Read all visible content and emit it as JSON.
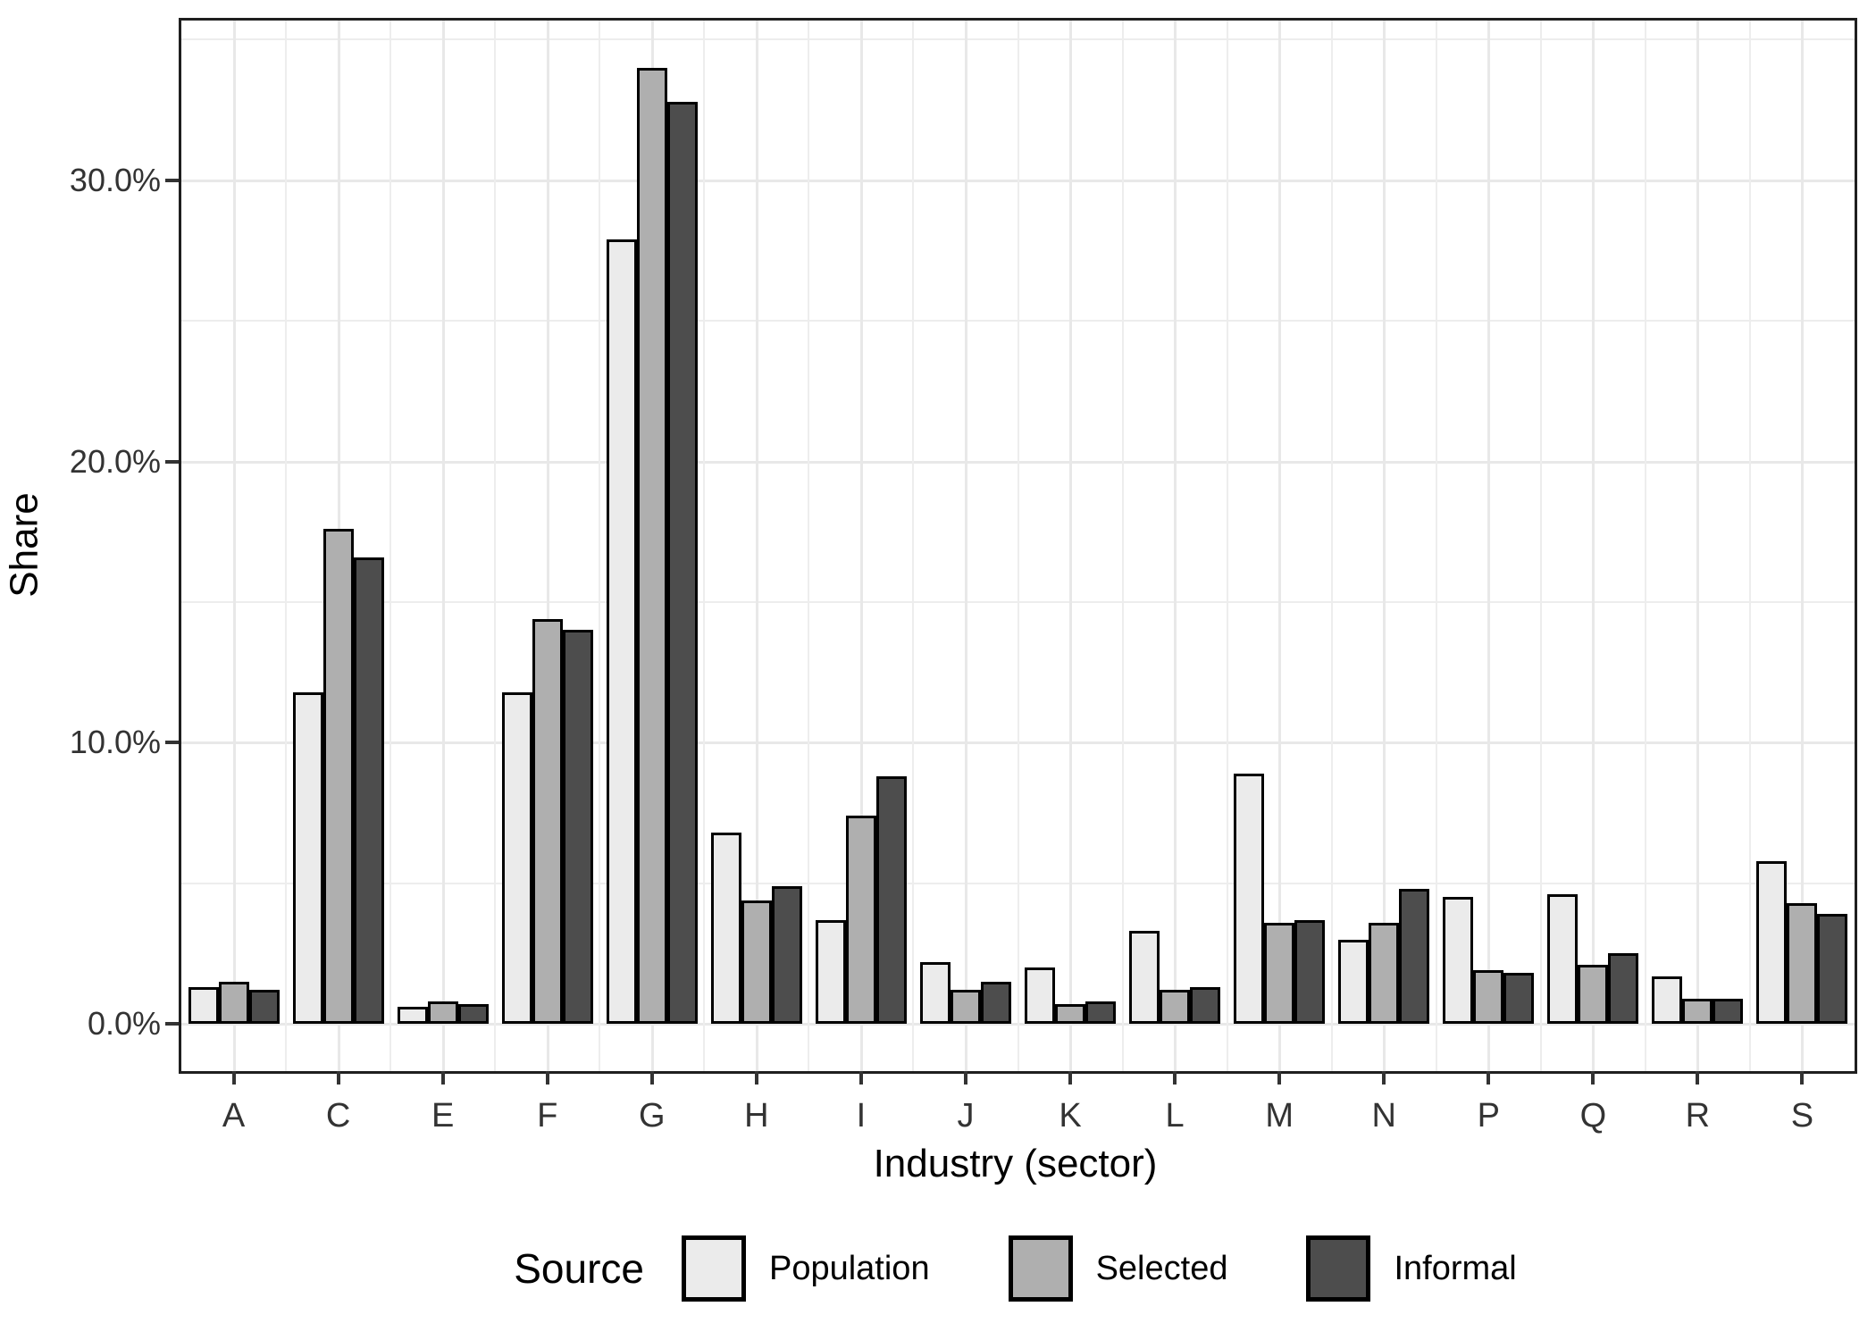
{
  "chart_data": {
    "type": "bar",
    "title": "",
    "xlabel": "Industry (sector)",
    "ylabel": "Share",
    "legend_title": "Source",
    "legend_position": "bottom",
    "grid": "on",
    "ylim": [
      -1.68,
      35.68
    ],
    "categories": [
      "A",
      "C",
      "E",
      "F",
      "G",
      "H",
      "I",
      "J",
      "K",
      "L",
      "M",
      "N",
      "P",
      "Q",
      "R",
      "S"
    ],
    "series": [
      {
        "name": "Population",
        "color": "#ebebeb",
        "values": [
          1.3,
          11.8,
          0.6,
          11.8,
          27.9,
          6.8,
          3.7,
          2.2,
          2.0,
          3.3,
          8.9,
          3.0,
          4.5,
          4.6,
          1.7,
          5.8
        ]
      },
      {
        "name": "Selected",
        "color": "#afafaf",
        "values": [
          1.5,
          17.6,
          0.8,
          14.4,
          34.0,
          4.4,
          7.4,
          1.2,
          0.7,
          1.2,
          3.6,
          3.6,
          1.9,
          2.1,
          0.9,
          4.3
        ]
      },
      {
        "name": "Informal",
        "color": "#4d4d4d",
        "values": [
          1.2,
          16.6,
          0.7,
          14.0,
          32.8,
          4.9,
          8.8,
          1.5,
          0.8,
          1.3,
          3.7,
          4.8,
          1.8,
          2.5,
          0.9,
          3.9
        ]
      }
    ],
    "y_ticks": [
      {
        "value": 0,
        "label": "0.0%"
      },
      {
        "value": 10,
        "label": "10.0%"
      },
      {
        "value": 20,
        "label": "20.0%"
      },
      {
        "value": 30,
        "label": "30.0%"
      }
    ],
    "y_minor_ticks": [
      5,
      15,
      25,
      35
    ],
    "colors": {
      "grid_major": "#e8e8e8",
      "grid_minor": "#ededed",
      "panel_border": "#1f1f1f",
      "bar_stroke": "#000000",
      "tick_text": "#333333"
    }
  }
}
